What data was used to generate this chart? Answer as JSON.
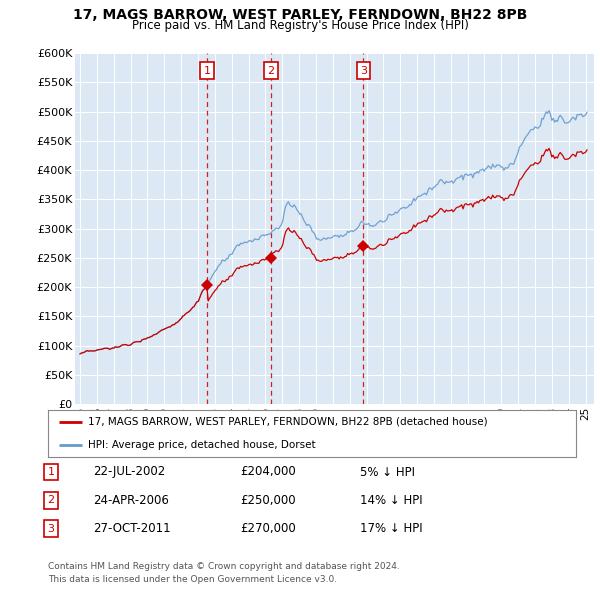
{
  "title": "17, MAGS BARROW, WEST PARLEY, FERNDOWN, BH22 8PB",
  "subtitle": "Price paid vs. HM Land Registry's House Price Index (HPI)",
  "legend_property": "17, MAGS BARROW, WEST PARLEY, FERNDOWN, BH22 8PB (detached house)",
  "legend_hpi": "HPI: Average price, detached house, Dorset",
  "ylabel_ticks": [
    "£0",
    "£50K",
    "£100K",
    "£150K",
    "£200K",
    "£250K",
    "£300K",
    "£350K",
    "£400K",
    "£450K",
    "£500K",
    "£550K",
    "£600K"
  ],
  "ytick_values": [
    0,
    50000,
    100000,
    150000,
    200000,
    250000,
    300000,
    350000,
    400000,
    450000,
    500000,
    550000,
    600000
  ],
  "ylim": [
    0,
    600000
  ],
  "xlim_start": 1994.7,
  "xlim_end": 2025.5,
  "plot_bg_color": "#dce9f5",
  "line_color_property": "#cc0000",
  "line_color_hpi": "#6699cc",
  "sales": [
    {
      "num": 1,
      "year_x": 2002.55,
      "price": 204000,
      "date": "22-JUL-2002",
      "pct": "5%"
    },
    {
      "num": 2,
      "year_x": 2006.32,
      "price": 250000,
      "date": "24-APR-2006",
      "pct": "14%"
    },
    {
      "num": 3,
      "year_x": 2011.82,
      "price": 270000,
      "date": "27-OCT-2011",
      "pct": "17%"
    }
  ],
  "footnote1": "Contains HM Land Registry data © Crown copyright and database right 2024.",
  "footnote2": "This data is licensed under the Open Government Licence v3.0."
}
